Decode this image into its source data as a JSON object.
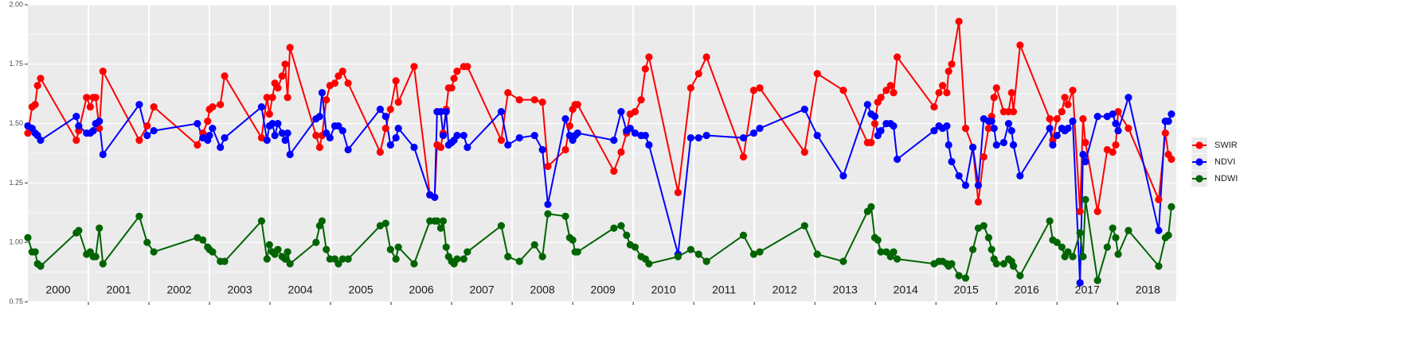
{
  "chart_data": {
    "type": "line",
    "x": [
      2000.0,
      2000.07,
      2000.12,
      2000.16,
      2000.21,
      2000.8,
      2000.84,
      2000.97,
      2001.03,
      2001.08,
      2001.12,
      2001.18,
      2001.24,
      2001.84,
      2001.97,
      2002.08,
      2002.8,
      2002.89,
      2002.97,
      2003.0,
      2003.05,
      2003.18,
      2003.25,
      2003.86,
      2003.95,
      2003.99,
      2004.04,
      2004.08,
      2004.13,
      2004.2,
      2004.25,
      2004.29,
      2004.33,
      2004.76,
      2004.82,
      2004.86,
      2004.93,
      2004.99,
      2005.07,
      2005.13,
      2005.2,
      2005.29,
      2005.82,
      2005.91,
      2005.99,
      2006.08,
      2006.12,
      2006.38,
      2006.64,
      2006.72,
      2006.76,
      2006.82,
      2006.86,
      2006.91,
      2006.95,
      2007.0,
      2007.04,
      2007.09,
      2007.2,
      2007.26,
      2007.82,
      2007.93,
      2008.12,
      2008.37,
      2008.5,
      2008.59,
      2008.88,
      2008.95,
      2009.0,
      2009.04,
      2009.08,
      2009.68,
      2009.8,
      2009.89,
      2009.95,
      2010.03,
      2010.13,
      2010.2,
      2010.26,
      2010.74,
      2010.95,
      2011.08,
      2011.21,
      2011.82,
      2011.99,
      2012.09,
      2012.83,
      2013.04,
      2013.47,
      2013.87,
      2013.93,
      2013.99,
      2014.04,
      2014.09,
      2014.18,
      2014.25,
      2014.3,
      2014.36,
      2014.97,
      2015.05,
      2015.11,
      2015.18,
      2015.21,
      2015.26,
      2015.38,
      2015.49,
      2015.61,
      2015.7,
      2015.79,
      2015.87,
      2015.92,
      2015.96,
      2016.0,
      2016.12,
      2016.2,
      2016.25,
      2016.28,
      2016.39,
      2016.88,
      2016.93,
      2017.0,
      2017.08,
      2017.13,
      2017.18,
      2017.26,
      2017.38,
      2017.43,
      2017.47,
      2017.67,
      2017.83,
      2017.92,
      2017.97,
      2018.01,
      2018.18,
      2018.68,
      2018.79,
      2018.84,
      2018.89
    ],
    "series": [
      {
        "name": "SWIR",
        "color": "#ff0000",
        "values": [
          1.46,
          1.57,
          1.58,
          1.66,
          1.69,
          1.43,
          1.47,
          1.61,
          1.57,
          1.61,
          1.61,
          1.48,
          1.72,
          1.43,
          1.49,
          1.57,
          1.41,
          1.46,
          1.51,
          1.56,
          1.57,
          1.58,
          1.7,
          1.44,
          1.61,
          1.54,
          1.61,
          1.67,
          1.65,
          1.7,
          1.75,
          1.61,
          1.82,
          1.45,
          1.4,
          1.45,
          1.6,
          1.66,
          1.67,
          1.7,
          1.72,
          1.67,
          1.38,
          1.48,
          1.56,
          1.68,
          1.59,
          1.74,
          1.2,
          1.19,
          1.41,
          1.4,
          1.46,
          1.56,
          1.65,
          1.65,
          1.69,
          1.72,
          1.74,
          1.74,
          1.43,
          1.63,
          1.6,
          1.6,
          1.59,
          1.32,
          1.39,
          1.49,
          1.56,
          1.58,
          1.58,
          1.3,
          1.38,
          1.46,
          1.54,
          1.55,
          1.6,
          1.73,
          1.78,
          1.21,
          1.65,
          1.71,
          1.78,
          1.36,
          1.64,
          1.65,
          1.38,
          1.71,
          1.64,
          1.42,
          1.42,
          1.5,
          1.59,
          1.61,
          1.64,
          1.66,
          1.63,
          1.78,
          1.57,
          1.63,
          1.66,
          1.63,
          1.72,
          1.75,
          1.93,
          1.48,
          1.4,
          1.17,
          1.36,
          1.48,
          1.53,
          1.61,
          1.65,
          1.55,
          1.55,
          1.63,
          1.55,
          1.83,
          1.52,
          1.43,
          1.52,
          1.55,
          1.61,
          1.58,
          1.64,
          1.13,
          1.52,
          1.42,
          1.13,
          1.39,
          1.38,
          1.41,
          1.55,
          1.48,
          1.18,
          1.46,
          1.37,
          1.35
        ]
      },
      {
        "name": "NDVI",
        "color": "#0000ff",
        "values": [
          1.49,
          1.48,
          1.46,
          1.45,
          1.43,
          1.53,
          1.49,
          1.46,
          1.46,
          1.47,
          1.5,
          1.51,
          1.37,
          1.58,
          1.45,
          1.47,
          1.5,
          1.44,
          1.43,
          1.45,
          1.48,
          1.4,
          1.44,
          1.57,
          1.43,
          1.49,
          1.5,
          1.45,
          1.5,
          1.46,
          1.43,
          1.46,
          1.37,
          1.52,
          1.53,
          1.63,
          1.46,
          1.44,
          1.49,
          1.49,
          1.47,
          1.39,
          1.56,
          1.53,
          1.41,
          1.44,
          1.48,
          1.4,
          1.2,
          1.19,
          1.55,
          1.55,
          1.45,
          1.55,
          1.41,
          1.42,
          1.43,
          1.45,
          1.45,
          1.4,
          1.55,
          1.41,
          1.44,
          1.45,
          1.39,
          1.16,
          1.52,
          1.45,
          1.43,
          1.45,
          1.46,
          1.43,
          1.55,
          1.47,
          1.48,
          1.46,
          1.45,
          1.45,
          1.41,
          0.95,
          1.44,
          1.44,
          1.45,
          1.44,
          1.46,
          1.48,
          1.56,
          1.45,
          1.28,
          1.58,
          1.54,
          1.53,
          1.45,
          1.47,
          1.5,
          1.5,
          1.49,
          1.35,
          1.47,
          1.49,
          1.48,
          1.49,
          1.41,
          1.34,
          1.28,
          1.24,
          1.4,
          1.24,
          1.52,
          1.51,
          1.51,
          1.48,
          1.41,
          1.42,
          1.5,
          1.47,
          1.41,
          1.28,
          1.48,
          1.41,
          1.45,
          1.48,
          1.47,
          1.48,
          1.51,
          0.83,
          1.37,
          1.34,
          1.53,
          1.53,
          1.54,
          1.5,
          1.47,
          1.61,
          1.05,
          1.51,
          1.51,
          1.54
        ]
      },
      {
        "name": "NDWI",
        "color": "#006400",
        "values": [
          1.02,
          0.96,
          0.96,
          0.91,
          0.9,
          1.04,
          1.05,
          0.95,
          0.96,
          0.94,
          0.94,
          1.06,
          0.91,
          1.11,
          1.0,
          0.96,
          1.02,
          1.01,
          0.98,
          0.97,
          0.96,
          0.92,
          0.92,
          1.09,
          0.93,
          0.99,
          0.96,
          0.95,
          0.97,
          0.94,
          0.93,
          0.96,
          0.91,
          1.0,
          1.07,
          1.09,
          0.97,
          0.93,
          0.93,
          0.91,
          0.93,
          0.93,
          1.07,
          1.08,
          0.97,
          0.93,
          0.98,
          0.91,
          1.09,
          1.09,
          1.09,
          1.06,
          1.09,
          0.98,
          0.94,
          0.92,
          0.91,
          0.93,
          0.93,
          0.96,
          1.07,
          0.94,
          0.92,
          0.99,
          0.94,
          1.12,
          1.11,
          1.02,
          1.01,
          0.96,
          0.96,
          1.06,
          1.07,
          1.03,
          0.99,
          0.98,
          0.94,
          0.93,
          0.91,
          0.94,
          0.97,
          0.95,
          0.92,
          1.03,
          0.95,
          0.96,
          1.07,
          0.95,
          0.92,
          1.13,
          1.15,
          1.02,
          1.01,
          0.96,
          0.96,
          0.94,
          0.96,
          0.93,
          0.91,
          0.92,
          0.92,
          0.91,
          0.9,
          0.91,
          0.86,
          0.85,
          0.97,
          1.06,
          1.07,
          1.02,
          0.97,
          0.93,
          0.91,
          0.91,
          0.93,
          0.92,
          0.9,
          0.86,
          1.09,
          1.01,
          1.0,
          0.98,
          0.94,
          0.96,
          0.94,
          1.04,
          0.94,
          1.18,
          0.84,
          0.98,
          1.06,
          1.02,
          0.95,
          1.05,
          0.9,
          1.02,
          1.03,
          1.15
        ]
      }
    ],
    "xlim": [
      2000,
      2018.97
    ],
    "xticks": [
      2001,
      2002,
      2003,
      2004,
      2005,
      2006,
      2007,
      2008,
      2009,
      2010,
      2011,
      2012,
      2013,
      2014,
      2015,
      2016,
      2017,
      2018
    ],
    "year_labels": [
      {
        "value": 2000.5,
        "label": "2000"
      },
      {
        "value": 2001.5,
        "label": "2001"
      },
      {
        "value": 2002.5,
        "label": "2002"
      },
      {
        "value": 2003.5,
        "label": "2003"
      },
      {
        "value": 2004.5,
        "label": "2004"
      },
      {
        "value": 2005.5,
        "label": "2005"
      },
      {
        "value": 2006.5,
        "label": "2006"
      },
      {
        "value": 2007.5,
        "label": "2007"
      },
      {
        "value": 2008.5,
        "label": "2008"
      },
      {
        "value": 2009.5,
        "label": "2009"
      },
      {
        "value": 2010.5,
        "label": "2010"
      },
      {
        "value": 2011.5,
        "label": "2011"
      },
      {
        "value": 2012.5,
        "label": "2012"
      },
      {
        "value": 2013.5,
        "label": "2013"
      },
      {
        "value": 2014.5,
        "label": "2014"
      },
      {
        "value": 2015.5,
        "label": "2015"
      },
      {
        "value": 2016.5,
        "label": "2016"
      },
      {
        "value": 2017.5,
        "label": "2017"
      },
      {
        "value": 2018.5,
        "label": "2018"
      }
    ],
    "ylim": [
      0.75,
      2.0
    ],
    "yticks": [
      0.75,
      {
        "value": 1,
        "label": "1.00"
      },
      1.25,
      {
        "value": 1.5,
        "label": "1.50"
      },
      1.75,
      {
        "value": 2,
        "label": "2.00"
      }
    ],
    "grid": true,
    "legend": "right"
  }
}
